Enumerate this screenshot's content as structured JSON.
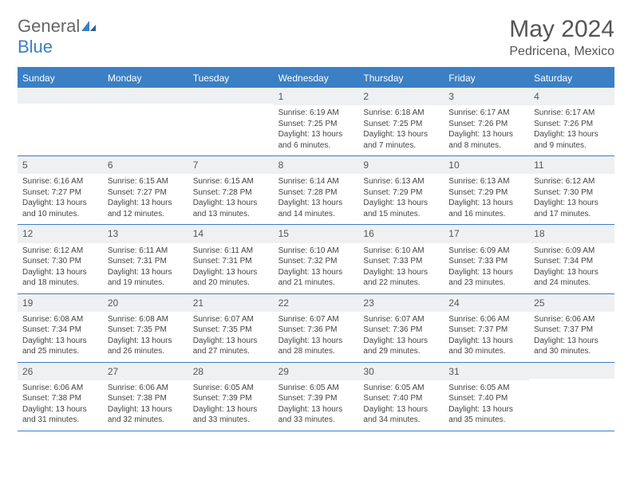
{
  "brand": {
    "part1": "General",
    "part2": "Blue"
  },
  "title": "May 2024",
  "location": "Pedricena, Mexico",
  "day_names": [
    "Sunday",
    "Monday",
    "Tuesday",
    "Wednesday",
    "Thursday",
    "Friday",
    "Saturday"
  ],
  "colors": {
    "accent": "#3b7fc4",
    "header_bg": "#eef0f2",
    "text": "#444444",
    "title_text": "#555555"
  },
  "weeks": [
    [
      {
        "n": "",
        "sr": "",
        "ss": "",
        "dl": ""
      },
      {
        "n": "",
        "sr": "",
        "ss": "",
        "dl": ""
      },
      {
        "n": "",
        "sr": "",
        "ss": "",
        "dl": ""
      },
      {
        "n": "1",
        "sr": "Sunrise: 6:19 AM",
        "ss": "Sunset: 7:25 PM",
        "dl": "Daylight: 13 hours and 6 minutes."
      },
      {
        "n": "2",
        "sr": "Sunrise: 6:18 AM",
        "ss": "Sunset: 7:25 PM",
        "dl": "Daylight: 13 hours and 7 minutes."
      },
      {
        "n": "3",
        "sr": "Sunrise: 6:17 AM",
        "ss": "Sunset: 7:26 PM",
        "dl": "Daylight: 13 hours and 8 minutes."
      },
      {
        "n": "4",
        "sr": "Sunrise: 6:17 AM",
        "ss": "Sunset: 7:26 PM",
        "dl": "Daylight: 13 hours and 9 minutes."
      }
    ],
    [
      {
        "n": "5",
        "sr": "Sunrise: 6:16 AM",
        "ss": "Sunset: 7:27 PM",
        "dl": "Daylight: 13 hours and 10 minutes."
      },
      {
        "n": "6",
        "sr": "Sunrise: 6:15 AM",
        "ss": "Sunset: 7:27 PM",
        "dl": "Daylight: 13 hours and 12 minutes."
      },
      {
        "n": "7",
        "sr": "Sunrise: 6:15 AM",
        "ss": "Sunset: 7:28 PM",
        "dl": "Daylight: 13 hours and 13 minutes."
      },
      {
        "n": "8",
        "sr": "Sunrise: 6:14 AM",
        "ss": "Sunset: 7:28 PM",
        "dl": "Daylight: 13 hours and 14 minutes."
      },
      {
        "n": "9",
        "sr": "Sunrise: 6:13 AM",
        "ss": "Sunset: 7:29 PM",
        "dl": "Daylight: 13 hours and 15 minutes."
      },
      {
        "n": "10",
        "sr": "Sunrise: 6:13 AM",
        "ss": "Sunset: 7:29 PM",
        "dl": "Daylight: 13 hours and 16 minutes."
      },
      {
        "n": "11",
        "sr": "Sunrise: 6:12 AM",
        "ss": "Sunset: 7:30 PM",
        "dl": "Daylight: 13 hours and 17 minutes."
      }
    ],
    [
      {
        "n": "12",
        "sr": "Sunrise: 6:12 AM",
        "ss": "Sunset: 7:30 PM",
        "dl": "Daylight: 13 hours and 18 minutes."
      },
      {
        "n": "13",
        "sr": "Sunrise: 6:11 AM",
        "ss": "Sunset: 7:31 PM",
        "dl": "Daylight: 13 hours and 19 minutes."
      },
      {
        "n": "14",
        "sr": "Sunrise: 6:11 AM",
        "ss": "Sunset: 7:31 PM",
        "dl": "Daylight: 13 hours and 20 minutes."
      },
      {
        "n": "15",
        "sr": "Sunrise: 6:10 AM",
        "ss": "Sunset: 7:32 PM",
        "dl": "Daylight: 13 hours and 21 minutes."
      },
      {
        "n": "16",
        "sr": "Sunrise: 6:10 AM",
        "ss": "Sunset: 7:33 PM",
        "dl": "Daylight: 13 hours and 22 minutes."
      },
      {
        "n": "17",
        "sr": "Sunrise: 6:09 AM",
        "ss": "Sunset: 7:33 PM",
        "dl": "Daylight: 13 hours and 23 minutes."
      },
      {
        "n": "18",
        "sr": "Sunrise: 6:09 AM",
        "ss": "Sunset: 7:34 PM",
        "dl": "Daylight: 13 hours and 24 minutes."
      }
    ],
    [
      {
        "n": "19",
        "sr": "Sunrise: 6:08 AM",
        "ss": "Sunset: 7:34 PM",
        "dl": "Daylight: 13 hours and 25 minutes."
      },
      {
        "n": "20",
        "sr": "Sunrise: 6:08 AM",
        "ss": "Sunset: 7:35 PM",
        "dl": "Daylight: 13 hours and 26 minutes."
      },
      {
        "n": "21",
        "sr": "Sunrise: 6:07 AM",
        "ss": "Sunset: 7:35 PM",
        "dl": "Daylight: 13 hours and 27 minutes."
      },
      {
        "n": "22",
        "sr": "Sunrise: 6:07 AM",
        "ss": "Sunset: 7:36 PM",
        "dl": "Daylight: 13 hours and 28 minutes."
      },
      {
        "n": "23",
        "sr": "Sunrise: 6:07 AM",
        "ss": "Sunset: 7:36 PM",
        "dl": "Daylight: 13 hours and 29 minutes."
      },
      {
        "n": "24",
        "sr": "Sunrise: 6:06 AM",
        "ss": "Sunset: 7:37 PM",
        "dl": "Daylight: 13 hours and 30 minutes."
      },
      {
        "n": "25",
        "sr": "Sunrise: 6:06 AM",
        "ss": "Sunset: 7:37 PM",
        "dl": "Daylight: 13 hours and 30 minutes."
      }
    ],
    [
      {
        "n": "26",
        "sr": "Sunrise: 6:06 AM",
        "ss": "Sunset: 7:38 PM",
        "dl": "Daylight: 13 hours and 31 minutes."
      },
      {
        "n": "27",
        "sr": "Sunrise: 6:06 AM",
        "ss": "Sunset: 7:38 PM",
        "dl": "Daylight: 13 hours and 32 minutes."
      },
      {
        "n": "28",
        "sr": "Sunrise: 6:05 AM",
        "ss": "Sunset: 7:39 PM",
        "dl": "Daylight: 13 hours and 33 minutes."
      },
      {
        "n": "29",
        "sr": "Sunrise: 6:05 AM",
        "ss": "Sunset: 7:39 PM",
        "dl": "Daylight: 13 hours and 33 minutes."
      },
      {
        "n": "30",
        "sr": "Sunrise: 6:05 AM",
        "ss": "Sunset: 7:40 PM",
        "dl": "Daylight: 13 hours and 34 minutes."
      },
      {
        "n": "31",
        "sr": "Sunrise: 6:05 AM",
        "ss": "Sunset: 7:40 PM",
        "dl": "Daylight: 13 hours and 35 minutes."
      },
      {
        "n": "",
        "sr": "",
        "ss": "",
        "dl": ""
      }
    ]
  ]
}
